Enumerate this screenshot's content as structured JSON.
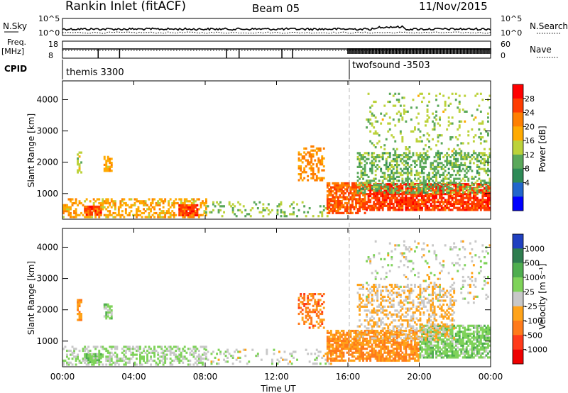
{
  "header": {
    "station": "Rankin Inlet (fitACF)",
    "beam": "Beam 05",
    "date": "11/Nov/2015"
  },
  "top_panels": {
    "nsky_label": "N.Sky",
    "nsky_ticks": [
      "10^5",
      "10^0"
    ],
    "nsearch_label": "N.Search",
    "nsearch_ticks": [
      "10^5",
      "10^0"
    ],
    "freq_label": "Freq.",
    "freq_unit": "[MHz]",
    "freq_ticks": [
      "18",
      "8"
    ],
    "nave_label": "Nave",
    "nave_ticks": [
      "60",
      "0"
    ],
    "cpid_label": "CPID",
    "cpid_modes": [
      {
        "name": "themis 3300",
        "start_hour": 0
      },
      {
        "name": "twofsound -3503",
        "start_hour": 16
      }
    ]
  },
  "x_axis": {
    "label": "Time UT",
    "ticks": [
      "00:00",
      "04:00",
      "08:00",
      "12:00",
      "16:00",
      "20:00",
      "00:00"
    ],
    "range_hours": [
      0,
      24
    ]
  },
  "colors": {
    "power_scale": [
      "#0000ff",
      "#2266cc",
      "#2e8b57",
      "#5aa85a",
      "#bcd23a",
      "#ffaa00",
      "#ff7f00",
      "#ff3c00",
      "#ff0000"
    ],
    "velocity_scale": [
      "#2040c0",
      "#2e7d4f",
      "#4fae4f",
      "#7fd35a",
      "#c8c8c8",
      "#ffa31a",
      "#ff7a1a",
      "#ff3a1a",
      "#ee0000"
    ]
  },
  "chart_data": [
    {
      "type": "heatmap",
      "name": "power",
      "ylabel": "Slant Range [km]",
      "ylim": [
        180,
        4600
      ],
      "yticks": [
        "1000",
        "2000",
        "3000",
        "4000"
      ],
      "colorbar_label": "Power [dB]",
      "colorbar_ticks": [
        "28",
        "24",
        "20",
        "16",
        "12",
        "8",
        "4"
      ],
      "colorbar_range": [
        0,
        32
      ],
      "regions": [
        {
          "t": [
            0.0,
            8.0
          ],
          "r": [
            220,
            800
          ],
          "v": 20,
          "d": 0.45
        },
        {
          "t": [
            1.2,
            2.2
          ],
          "r": [
            300,
            600
          ],
          "v": 26,
          "d": 0.8
        },
        {
          "t": [
            6.5,
            7.5
          ],
          "r": [
            280,
            600
          ],
          "v": 27,
          "d": 0.8
        },
        {
          "t": [
            8.0,
            15.0
          ],
          "r": [
            250,
            750
          ],
          "v": 14,
          "d": 0.18
        },
        {
          "t": [
            0.8,
            1.1
          ],
          "r": [
            1650,
            2300
          ],
          "v": 16,
          "d": 0.7
        },
        {
          "t": [
            2.3,
            2.8
          ],
          "r": [
            1700,
            2200
          ],
          "v": 20,
          "d": 0.7
        },
        {
          "t": [
            13.2,
            14.6
          ],
          "r": [
            1400,
            2500
          ],
          "v": 22,
          "d": 0.45
        },
        {
          "t": [
            14.8,
            17.0
          ],
          "r": [
            350,
            1300
          ],
          "v": 25,
          "d": 0.75
        },
        {
          "t": [
            17.0,
            24.0
          ],
          "r": [
            450,
            1300
          ],
          "v": 27,
          "d": 0.8
        },
        {
          "t": [
            16.5,
            24.0
          ],
          "r": [
            1000,
            2300
          ],
          "v": 13,
          "d": 0.45
        },
        {
          "t": [
            17.0,
            24.0
          ],
          "r": [
            2200,
            4200
          ],
          "v": 15,
          "d": 0.12
        }
      ]
    },
    {
      "type": "heatmap",
      "name": "velocity",
      "ylabel": "Slant Range [km]",
      "ylim": [
        180,
        4600
      ],
      "yticks": [
        "1000",
        "2000",
        "3000",
        "4000"
      ],
      "colorbar_label": "Velocity [m s⁻¹]",
      "colorbar_ticks": [
        "1000",
        "500",
        "100",
        "25",
        "-25",
        "-100",
        "-500",
        "-1000"
      ],
      "colorbar_range": [
        -1200,
        1200
      ],
      "regions": [
        {
          "t": [
            0.0,
            8.0
          ],
          "r": [
            220,
            800
          ],
          "v": 150,
          "d": 0.45
        },
        {
          "t": [
            1.2,
            2.2
          ],
          "r": [
            300,
            600
          ],
          "v": 300,
          "d": 0.7
        },
        {
          "t": [
            8.0,
            15.0
          ],
          "r": [
            250,
            750
          ],
          "v": 60,
          "d": 0.18
        },
        {
          "t": [
            0.8,
            1.1
          ],
          "r": [
            1650,
            2300
          ],
          "v": -400,
          "d": 0.7
        },
        {
          "t": [
            2.3,
            2.8
          ],
          "r": [
            1700,
            2200
          ],
          "v": 250,
          "d": 0.7
        },
        {
          "t": [
            13.2,
            14.6
          ],
          "r": [
            1400,
            2500
          ],
          "v": -500,
          "d": 0.45
        },
        {
          "t": [
            14.8,
            20.0
          ],
          "r": [
            350,
            1300
          ],
          "v": -400,
          "d": 0.75
        },
        {
          "t": [
            20.0,
            24.0
          ],
          "r": [
            450,
            1500
          ],
          "v": 300,
          "d": 0.7
        },
        {
          "t": [
            16.5,
            22.0
          ],
          "r": [
            1000,
            2800
          ],
          "v": -150,
          "d": 0.35
        },
        {
          "t": [
            17.0,
            24.0
          ],
          "r": [
            2200,
            4200
          ],
          "v": 0,
          "d": 0.1
        }
      ]
    }
  ]
}
